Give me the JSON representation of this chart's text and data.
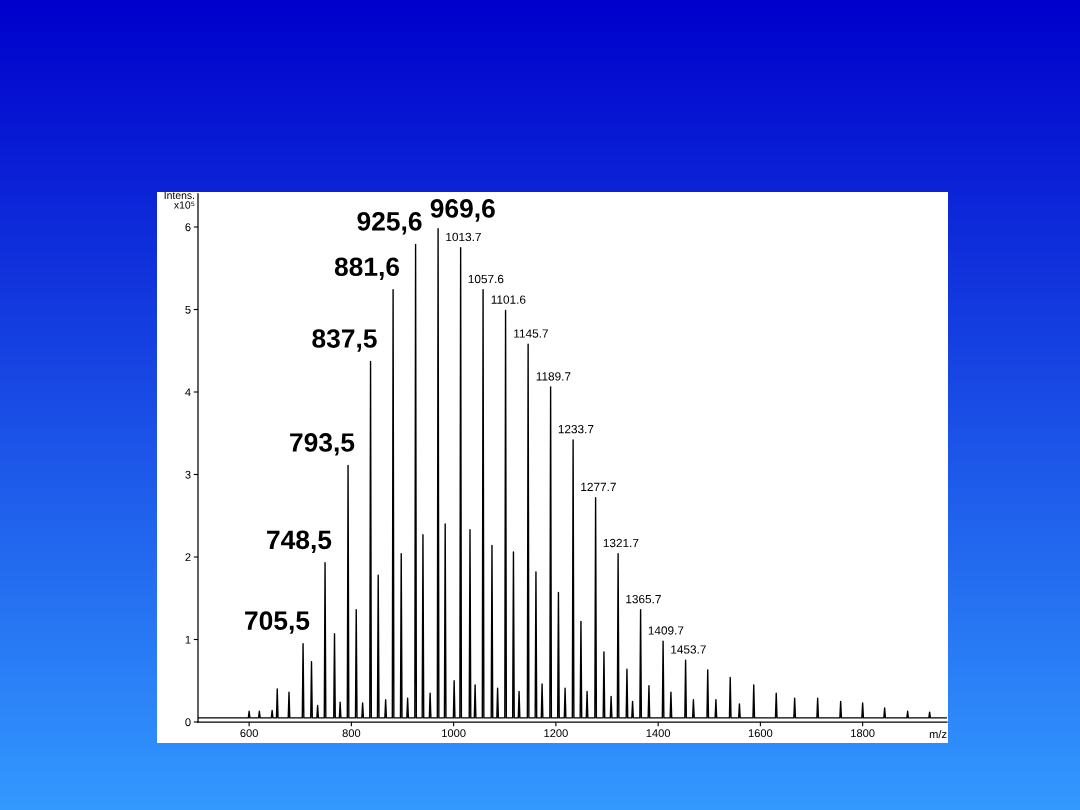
{
  "chart_data": {
    "type": "line",
    "xlabel": "m/z",
    "ylabel": "Intens.\nx10⁵",
    "xlim": [
      500,
      1965
    ],
    "ylim": [
      0,
      6.4
    ],
    "xticks": [
      600,
      800,
      1000,
      1200,
      1400,
      1600,
      1800
    ],
    "yticks": [
      0,
      1,
      2,
      3,
      4,
      5,
      6
    ],
    "x": [
      500,
      598.5,
      600,
      601.5,
      618.5,
      620,
      621.5,
      643.5,
      645,
      646.5,
      653.5,
      655,
      656.5,
      676.5,
      678,
      679.5,
      704,
      705.5,
      707,
      720.5,
      722,
      723.5,
      732.5,
      734,
      735.5,
      747,
      748.5,
      750,
      765.5,
      767,
      768.5,
      776.5,
      778,
      779.5,
      792,
      793.5,
      795,
      808,
      809.5,
      811,
      820.5,
      822,
      823.5,
      836,
      837.5,
      839,
      851,
      852.5,
      854,
      865.5,
      867,
      868.5,
      880.1,
      881.6,
      883.1,
      896,
      897.5,
      899,
      908.5,
      910,
      911.5,
      924.1,
      925.6,
      927.1,
      938.5,
      940,
      941.5,
      952.5,
      954,
      955.5,
      968.1,
      969.6,
      971.1,
      982,
      983.5,
      985,
      999.5,
      1001,
      1002.5,
      1012.2,
      1013.7,
      1015.2,
      1030.5,
      1032,
      1033.5,
      1040.5,
      1042,
      1043.5,
      1056.1,
      1057.6,
      1059.1,
      1073.5,
      1075,
      1076.5,
      1084.5,
      1086,
      1087.5,
      1100.1,
      1101.6,
      1103.1,
      1115.5,
      1117,
      1118.5,
      1126.5,
      1128,
      1129.5,
      1144.2,
      1145.7,
      1147.2,
      1159.5,
      1161,
      1162.5,
      1171.5,
      1173,
      1174.5,
      1188.2,
      1189.7,
      1191.2,
      1203.5,
      1205,
      1206.5,
      1216.5,
      1218,
      1219.5,
      1232.2,
      1233.7,
      1235.2,
      1247.5,
      1249,
      1250.5,
      1259.5,
      1261,
      1262.5,
      1276.2,
      1277.7,
      1279.2,
      1292.5,
      1294,
      1295.5,
      1306.5,
      1308,
      1309.5,
      1320.2,
      1321.7,
      1323.2,
      1337.5,
      1339,
      1340.5,
      1348.5,
      1350,
      1351.5,
      1364.2,
      1365.7,
      1367.2,
      1380.5,
      1382,
      1383.5,
      1408.2,
      1409.7,
      1411.2,
      1423.5,
      1425,
      1426.5,
      1452.2,
      1453.7,
      1455.2,
      1467.5,
      1469,
      1470.5,
      1495.5,
      1497,
      1498.5,
      1511.5,
      1513,
      1514.5,
      1539.5,
      1541,
      1542.5,
      1557.5,
      1559,
      1560.5,
      1585.5,
      1587,
      1588.5,
      1629.5,
      1631,
      1632.5,
      1665.5,
      1667,
      1668.5,
      1710.5,
      1712,
      1713.5,
      1755.5,
      1757,
      1758.5,
      1798.5,
      1800,
      1801.5,
      1841.5,
      1843,
      1844.5,
      1886.5,
      1888,
      1889.5,
      1929.5,
      1931,
      1932.5,
      1965
    ],
    "series": [
      {
        "color": "#000000",
        "values": [
          0.05,
          0.05,
          0.13,
          0.05,
          0.05,
          0.13,
          0.05,
          0.05,
          0.14,
          0.05,
          0.05,
          0.4,
          0.05,
          0.05,
          0.36,
          0.05,
          0.05,
          0.95,
          0.05,
          0.05,
          0.73,
          0.05,
          0.05,
          0.2,
          0.05,
          0.05,
          1.93,
          0.05,
          0.05,
          1.07,
          0.05,
          0.05,
          0.24,
          0.05,
          0.05,
          3.11,
          0.05,
          0.05,
          1.36,
          0.05,
          0.05,
          0.23,
          0.05,
          0.05,
          4.37,
          0.05,
          0.05,
          1.78,
          0.05,
          0.05,
          0.27,
          0.05,
          0.05,
          5.24,
          0.05,
          0.05,
          2.04,
          0.05,
          0.05,
          0.29,
          0.05,
          0.05,
          5.79,
          0.05,
          0.05,
          2.27,
          0.05,
          0.05,
          0.35,
          0.05,
          0.05,
          5.98,
          0.05,
          0.05,
          2.4,
          0.05,
          0.05,
          0.5,
          0.05,
          0.05,
          5.75,
          0.05,
          0.05,
          2.33,
          0.05,
          0.05,
          0.45,
          0.05,
          0.05,
          5.24,
          0.05,
          0.05,
          2.14,
          0.05,
          0.05,
          0.41,
          0.05,
          0.05,
          4.99,
          0.05,
          0.05,
          2.06,
          0.05,
          0.05,
          0.37,
          0.05,
          0.05,
          4.58,
          0.05,
          0.05,
          1.82,
          0.05,
          0.05,
          0.46,
          0.05,
          0.05,
          4.06,
          0.05,
          0.05,
          1.57,
          0.05,
          0.05,
          0.41,
          0.05,
          0.05,
          3.42,
          0.05,
          0.05,
          1.22,
          0.05,
          0.05,
          0.37,
          0.05,
          0.05,
          2.72,
          0.05,
          0.05,
          0.85,
          0.05,
          0.05,
          0.31,
          0.05,
          0.05,
          2.04,
          0.05,
          0.05,
          0.64,
          0.05,
          0.05,
          0.25,
          0.05,
          0.05,
          1.36,
          0.05,
          0.05,
          0.44,
          0.05,
          0.05,
          0.98,
          0.05,
          0.05,
          0.36,
          0.05,
          0.05,
          0.75,
          0.05,
          0.05,
          0.27,
          0.05,
          0.05,
          0.63,
          0.05,
          0.05,
          0.27,
          0.05,
          0.05,
          0.54,
          0.05,
          0.05,
          0.22,
          0.05,
          0.05,
          0.45,
          0.05,
          0.05,
          0.35,
          0.05,
          0.05,
          0.29,
          0.05,
          0.05,
          0.29,
          0.05,
          0.05,
          0.25,
          0.05,
          0.05,
          0.23,
          0.05,
          0.05,
          0.17,
          0.05,
          0.05,
          0.13,
          0.05,
          0.05,
          0.12,
          0.05,
          0.05
        ]
      }
    ],
    "annotations": [
      {
        "text": "705,5",
        "x": 705.5,
        "y": 0.95
      },
      {
        "text": "748,5",
        "x": 748.5,
        "y": 1.93
      },
      {
        "text": "793,5",
        "x": 793.5,
        "y": 3.11
      },
      {
        "text": "837,5",
        "x": 837.5,
        "y": 4.37
      },
      {
        "text": "881,6",
        "x": 881.6,
        "y": 5.24
      },
      {
        "text": "925,6",
        "x": 925.6,
        "y": 5.79
      },
      {
        "text": "969,6",
        "x": 969.6,
        "y": 5.98
      },
      {
        "text": "1013.7",
        "x": 1013.7,
        "y": 5.75
      },
      {
        "text": "1057.6",
        "x": 1057.6,
        "y": 5.24
      },
      {
        "text": "1101.6",
        "x": 1101.6,
        "y": 4.99
      },
      {
        "text": "1145.7",
        "x": 1145.7,
        "y": 4.58
      },
      {
        "text": "1189.7",
        "x": 1189.7,
        "y": 4.06
      },
      {
        "text": "1233.7",
        "x": 1233.7,
        "y": 3.42
      },
      {
        "text": "1277.7",
        "x": 1277.7,
        "y": 2.72
      },
      {
        "text": "1321.7",
        "x": 1321.7,
        "y": 2.04
      },
      {
        "text": "1365.7",
        "x": 1365.7,
        "y": 1.36
      },
      {
        "text": "1409.7",
        "x": 1409.7,
        "y": 0.98
      },
      {
        "text": "1453.7",
        "x": 1453.7,
        "y": 0.75
      }
    ]
  }
}
